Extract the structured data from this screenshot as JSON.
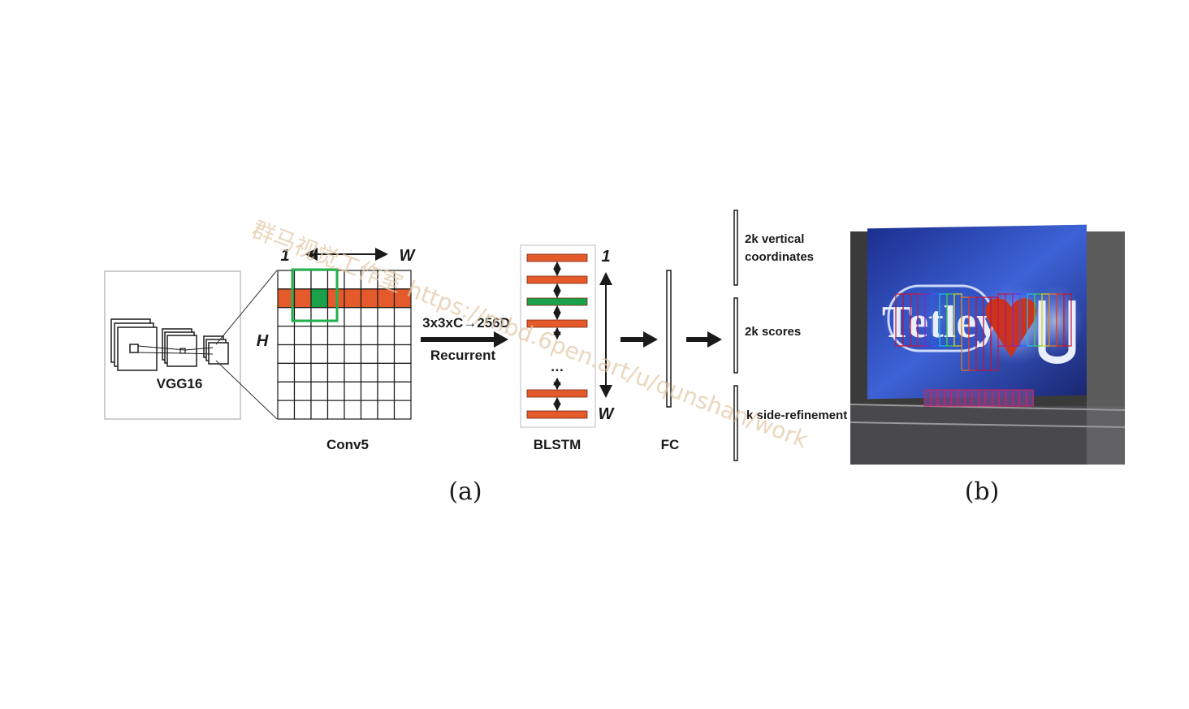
{
  "backbone": {
    "label": "VGG16"
  },
  "conv5": {
    "label": "Conv5",
    "width_start_label": "1",
    "width_end_label": "W",
    "height_label": "H",
    "rows": 8,
    "cols": 8
  },
  "connector": {
    "top_label": "3x3xC→256D",
    "bottom_label": "Recurrent"
  },
  "blstm": {
    "label": "BLSTM",
    "top_label": "1",
    "bottom_label": "W",
    "ellipsis": "…"
  },
  "fc": {
    "label": "FC"
  },
  "outputs": {
    "vertical_line1": "2k vertical",
    "vertical_line2": "coordinates",
    "scores": "2k scores",
    "side_refinement": "k side-refinement"
  },
  "captions": {
    "a": "(a)",
    "b": "(b)"
  },
  "photo": {
    "text": "Tetley"
  },
  "watermark": {
    "text": "群马视觉工作室 https://mbd.6pen.art/u/qunshan/work"
  },
  "colors": {
    "lstm_bar": "#e55a2b",
    "lstm_highlight": "#1aa14a",
    "window_box": "#22b14c",
    "line": "#1a1a1a"
  }
}
